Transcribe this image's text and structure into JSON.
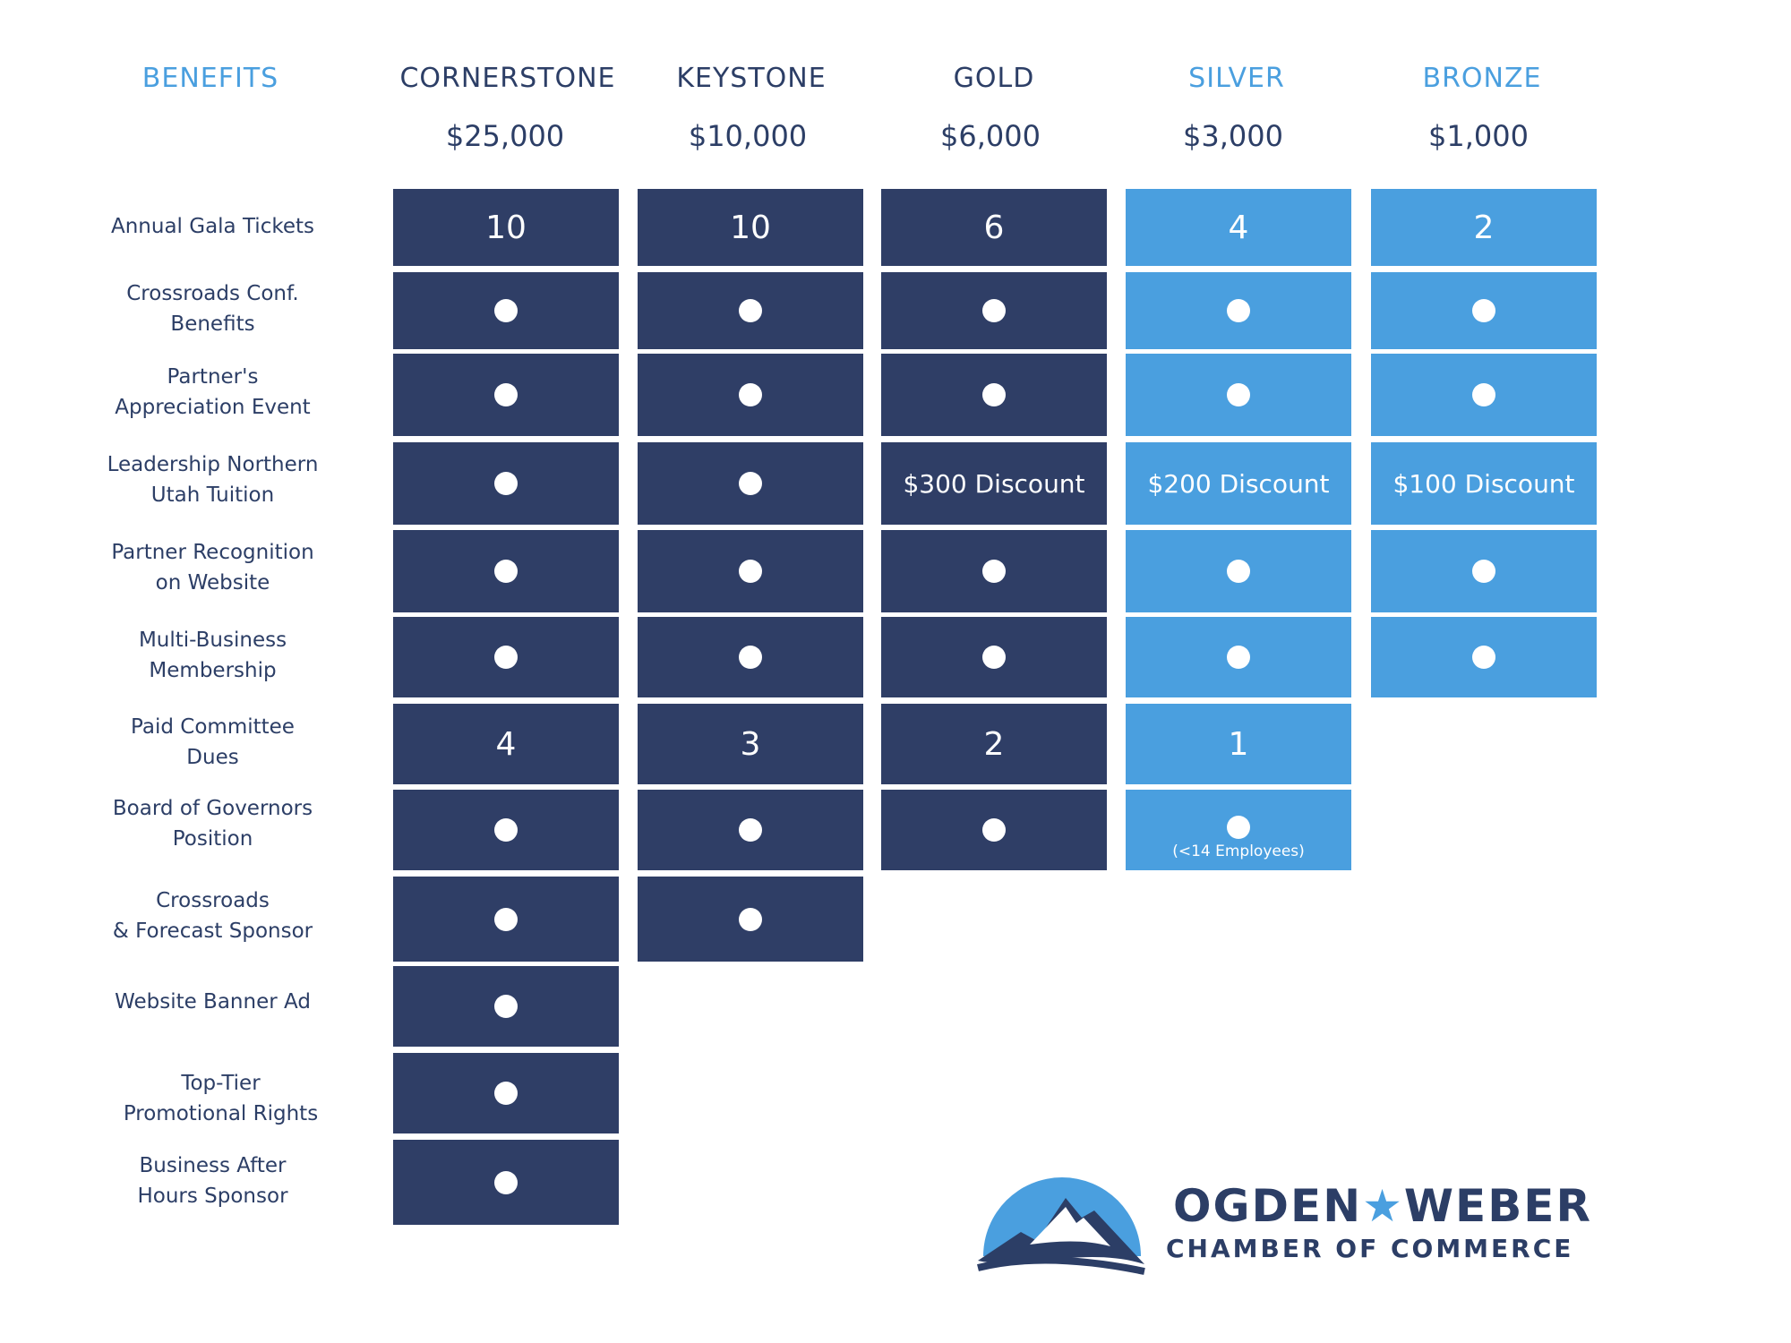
{
  "header": {
    "benefits_label": "BENEFITS",
    "tiers": [
      {
        "name": "CORNERSTONE",
        "price": "$25,000",
        "accent": "#2f3e66"
      },
      {
        "name": "KEYSTONE",
        "price": "$10,000",
        "accent": "#2f3e66"
      },
      {
        "name": "GOLD",
        "price": "$6,000",
        "accent": "#2f3e66"
      },
      {
        "name": "SILVER",
        "price": "$3,000",
        "accent": "#4a9fdf"
      },
      {
        "name": "BRONZE",
        "price": "$1,000",
        "accent": "#4a9fdf"
      }
    ]
  },
  "benefits": [
    {
      "label": "Annual Gala Tickets"
    },
    {
      "label": "Crossroads Conf.\nBenefits"
    },
    {
      "label": "Partner's\nAppreciation Event"
    },
    {
      "label": "Leadership Northern\nUtah Tuition"
    },
    {
      "label": "Partner Recognition\non Website"
    },
    {
      "label": "Multi-Business\nMembership"
    },
    {
      "label": "Paid Committee\nDues"
    },
    {
      "label": "Board of Governors\nPosition"
    },
    {
      "label": "Crossroads\n& Forecast Sponsor"
    },
    {
      "label": "Website Banner Ad"
    },
    {
      "label": "Top-Tier\nPromotional Rights"
    },
    {
      "label": "Business After\nHours Sponsor"
    }
  ],
  "grid": [
    [
      "10",
      "10",
      "6",
      "4",
      "2"
    ],
    [
      "dot",
      "dot",
      "dot",
      "dot",
      "dot"
    ],
    [
      "dot",
      "dot",
      "dot",
      "dot",
      "dot"
    ],
    [
      "dot",
      "dot",
      "$300 Discount",
      "$200 Discount",
      "$100 Discount"
    ],
    [
      "dot",
      "dot",
      "dot",
      "dot",
      "dot"
    ],
    [
      "dot",
      "dot",
      "dot",
      "dot",
      "dot"
    ],
    [
      "4",
      "3",
      "2",
      "1",
      ""
    ],
    [
      "dot",
      "dot",
      "dot",
      "dot",
      ""
    ],
    [
      "dot",
      "dot",
      "",
      "",
      ""
    ],
    [
      "dot",
      "",
      "",
      "",
      ""
    ],
    [
      "dot",
      "",
      "",
      "",
      ""
    ],
    [
      "dot",
      "",
      "",
      "",
      ""
    ]
  ],
  "notes": {
    "silver_board": "(<14 Employees)"
  },
  "logo": {
    "line1_left": "OGDEN",
    "line1_star": "★",
    "line1_right": "WEBER",
    "line2": "CHAMBER OF COMMERCE"
  },
  "colors": {
    "dark": "#2f3e66",
    "light": "#4a9fdf"
  }
}
